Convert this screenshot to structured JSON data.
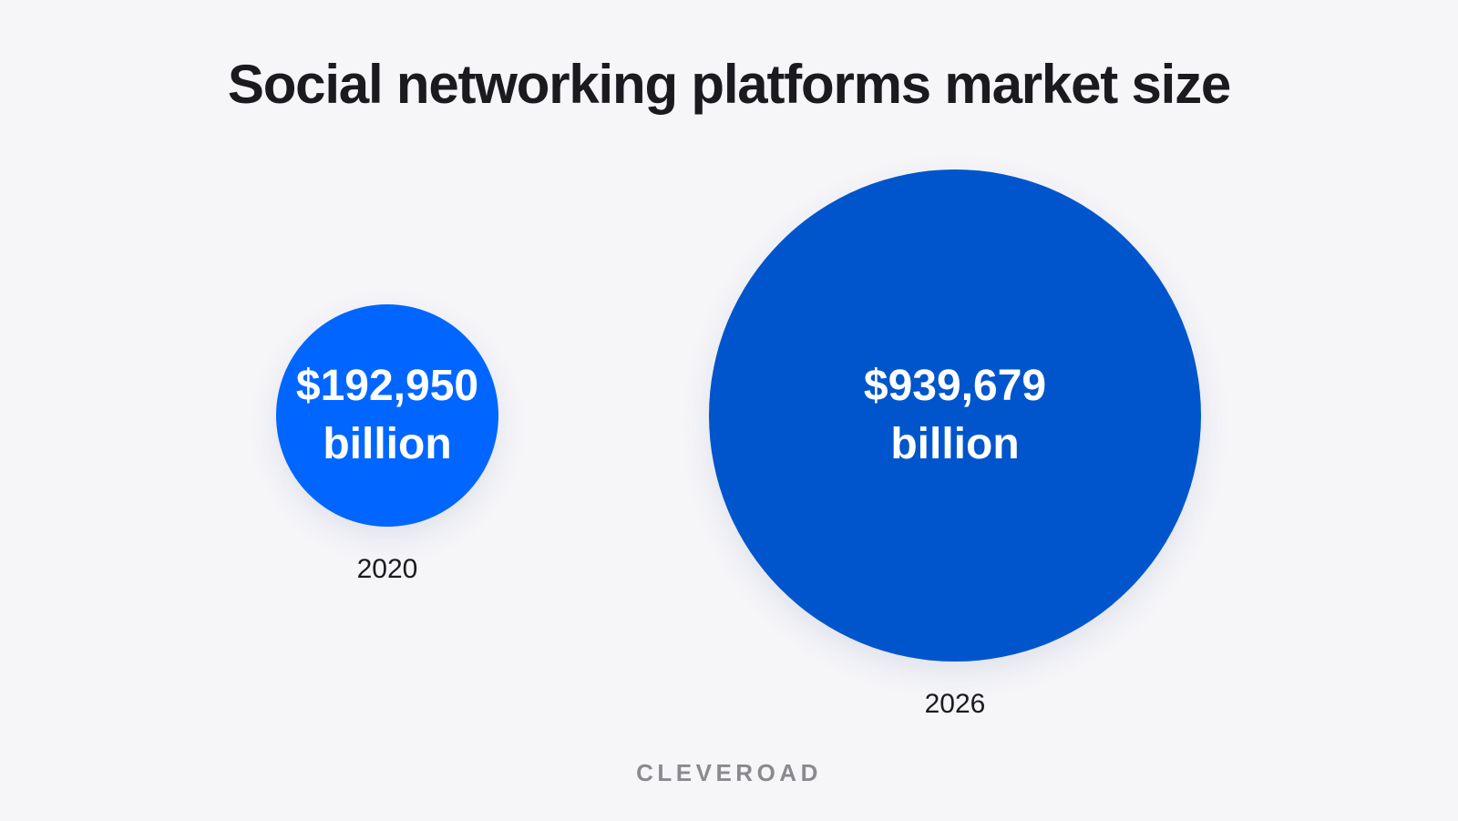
{
  "title": "Social networking platforms market size",
  "colors": {
    "background": "#f6f6f9",
    "bubble_2020": "#0066ff",
    "bubble_2026": "#0055cc",
    "text_dark": "#1b1b1f",
    "text_light": "#ffffff",
    "brand": "#8a8a8e"
  },
  "chart_data": {
    "type": "bubble",
    "title": "Social networking platforms market size",
    "unit": "billion",
    "categories": [
      "2020",
      "2026"
    ],
    "values": [
      192950,
      939679
    ],
    "points": [
      {
        "year": "2020",
        "value": 192950,
        "value_label": "$192,950",
        "unit_label": "billion"
      },
      {
        "year": "2026",
        "value": 939679,
        "value_label": "$939,679",
        "unit_label": "billion"
      }
    ]
  },
  "brand": "CLEVEROAD"
}
